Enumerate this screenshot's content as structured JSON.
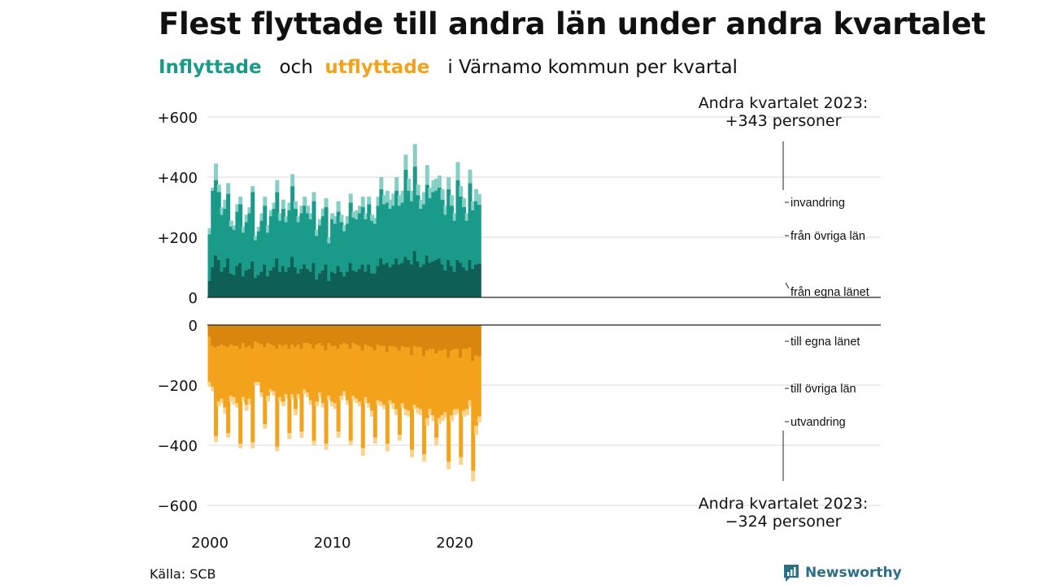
{
  "title": "Flest flyttade till andra län under andra kvartalet",
  "subtitle": {
    "in_word": "Inflyttade",
    "and_word": "och",
    "out_word": "utflyttade",
    "rest": "i Värnamo  kommun  per  kvartal"
  },
  "source": "Källa: SCB",
  "brand": "Newsworthy",
  "colors": {
    "in_local": "#0e5f55",
    "in_other": "#1a9a88",
    "in_immigration": "#86cfc4",
    "out_local": "#d9860f",
    "out_other": "#f3a21b",
    "out_emigration": "#f8d48e",
    "grid": "#d9d9d9",
    "brand": "#2a6f86"
  },
  "chart_data": {
    "type": "bar",
    "stacked": true,
    "x_start": "2000-Q1",
    "x_tick_labels": [
      "2000",
      "2010",
      "2020"
    ],
    "y_tick_labels_top": [
      "+600",
      "+400",
      "+200",
      "0"
    ],
    "y_tick_labels_bottom": [
      "0",
      "−200",
      "−400",
      "−600"
    ],
    "ylim_top": [
      0,
      600
    ],
    "ylim_bottom": [
      -600,
      0
    ],
    "grid": true,
    "annotation_top": [
      "Andra kvartalet 2023:",
      "+343 personer"
    ],
    "annotation_bottom": [
      "Andra kvartalet 2023:",
      "−324 personer"
    ],
    "top_series_labels": [
      "invandring",
      "från övriga län",
      "från egna länet"
    ],
    "bottom_series_labels": [
      "till egna länet",
      "till övriga län",
      "utvandring"
    ],
    "in_totals": [
      230,
      365,
      445,
      375,
      300,
      325,
      380,
      255,
      240,
      310,
      335,
      235,
      275,
      300,
      370,
      205,
      235,
      280,
      335,
      240,
      290,
      315,
      390,
      280,
      325,
      270,
      315,
      410,
      320,
      270,
      305,
      335,
      305,
      280,
      350,
      225,
      260,
      295,
      330,
      200,
      280,
      270,
      320,
      275,
      240,
      270,
      345,
      285,
      290,
      305,
      335,
      280,
      335,
      275,
      265,
      335,
      400,
      340,
      355,
      325,
      345,
      400,
      340,
      355,
      475,
      395,
      355,
      510,
      375,
      325,
      350,
      440,
      365,
      390,
      395,
      405,
      360,
      305,
      400,
      340,
      280,
      450,
      370,
      330,
      280,
      425,
      320,
      360,
      343
    ],
    "in_local": [
      55,
      100,
      140,
      125,
      85,
      100,
      130,
      80,
      75,
      105,
      115,
      70,
      90,
      95,
      120,
      65,
      75,
      85,
      110,
      70,
      90,
      100,
      130,
      85,
      105,
      85,
      100,
      135,
      100,
      80,
      95,
      110,
      95,
      85,
      115,
      60,
      80,
      90,
      110,
      55,
      85,
      80,
      105,
      85,
      70,
      85,
      115,
      90,
      85,
      95,
      110,
      85,
      110,
      80,
      80,
      105,
      130,
      110,
      115,
      100,
      110,
      130,
      110,
      115,
      135,
      125,
      110,
      155,
      120,
      100,
      110,
      140,
      115,
      120,
      125,
      130,
      110,
      90,
      125,
      105,
      85,
      125,
      115,
      100,
      90,
      125,
      95,
      110,
      112
    ],
    "in_imm": [
      20,
      10,
      55,
      25,
      25,
      30,
      35,
      20,
      15,
      25,
      25,
      20,
      25,
      20,
      20,
      15,
      15,
      25,
      30,
      25,
      20,
      20,
      40,
      25,
      30,
      20,
      25,
      40,
      25,
      20,
      25,
      30,
      25,
      20,
      30,
      20,
      20,
      25,
      30,
      20,
      20,
      25,
      35,
      25,
      20,
      25,
      30,
      20,
      30,
      25,
      35,
      20,
      25,
      20,
      20,
      30,
      40,
      30,
      40,
      30,
      40,
      45,
      35,
      40,
      50,
      40,
      35,
      75,
      35,
      30,
      40,
      65,
      35,
      40,
      40,
      40,
      35,
      30,
      40,
      35,
      25,
      60,
      35,
      30,
      25,
      45,
      30,
      40,
      35
    ],
    "out_totals": [
      205,
      220,
      390,
      270,
      260,
      295,
      375,
      255,
      265,
      275,
      410,
      255,
      285,
      265,
      410,
      200,
      200,
      240,
      345,
      255,
      225,
      235,
      420,
      255,
      270,
      245,
      380,
      245,
      300,
      245,
      375,
      230,
      240,
      265,
      400,
      270,
      240,
      275,
      415,
      250,
      270,
      280,
      375,
      250,
      235,
      265,
      400,
      250,
      260,
      270,
      435,
      260,
      275,
      305,
      395,
      265,
      270,
      280,
      420,
      265,
      280,
      300,
      385,
      275,
      300,
      305,
      440,
      280,
      295,
      300,
      455,
      335,
      300,
      320,
      400,
      330,
      320,
      310,
      480,
      320,
      300,
      295,
      465,
      305,
      300,
      270,
      520,
      365,
      324
    ],
    "out_local": [
      40,
      70,
      75,
      70,
      65,
      70,
      75,
      65,
      70,
      70,
      80,
      60,
      75,
      70,
      80,
      55,
      60,
      65,
      75,
      60,
      65,
      70,
      80,
      65,
      70,
      65,
      80,
      65,
      75,
      65,
      80,
      60,
      60,
      65,
      80,
      65,
      60,
      70,
      85,
      60,
      70,
      70,
      80,
      65,
      60,
      65,
      80,
      60,
      65,
      70,
      85,
      65,
      70,
      75,
      85,
      65,
      70,
      70,
      90,
      70,
      70,
      75,
      85,
      70,
      75,
      75,
      100,
      70,
      75,
      75,
      105,
      85,
      80,
      80,
      95,
      85,
      85,
      80,
      110,
      85,
      80,
      80,
      110,
      80,
      80,
      75,
      120,
      100,
      105
    ],
    "out_emig": [
      15,
      15,
      20,
      15,
      15,
      20,
      15,
      20,
      25,
      15,
      15,
      15,
      20,
      20,
      20,
      10,
      10,
      15,
      15,
      20,
      10,
      15,
      15,
      15,
      15,
      15,
      20,
      15,
      20,
      15,
      20,
      15,
      15,
      15,
      15,
      15,
      15,
      15,
      20,
      15,
      15,
      20,
      20,
      15,
      15,
      15,
      15,
      15,
      15,
      15,
      25,
      20,
      15,
      20,
      20,
      15,
      15,
      15,
      25,
      15,
      20,
      20,
      20,
      15,
      20,
      20,
      25,
      15,
      20,
      20,
      25,
      25,
      20,
      20,
      25,
      20,
      20,
      20,
      25,
      20,
      20,
      15,
      25,
      20,
      20,
      20,
      35,
      30,
      20
    ]
  }
}
